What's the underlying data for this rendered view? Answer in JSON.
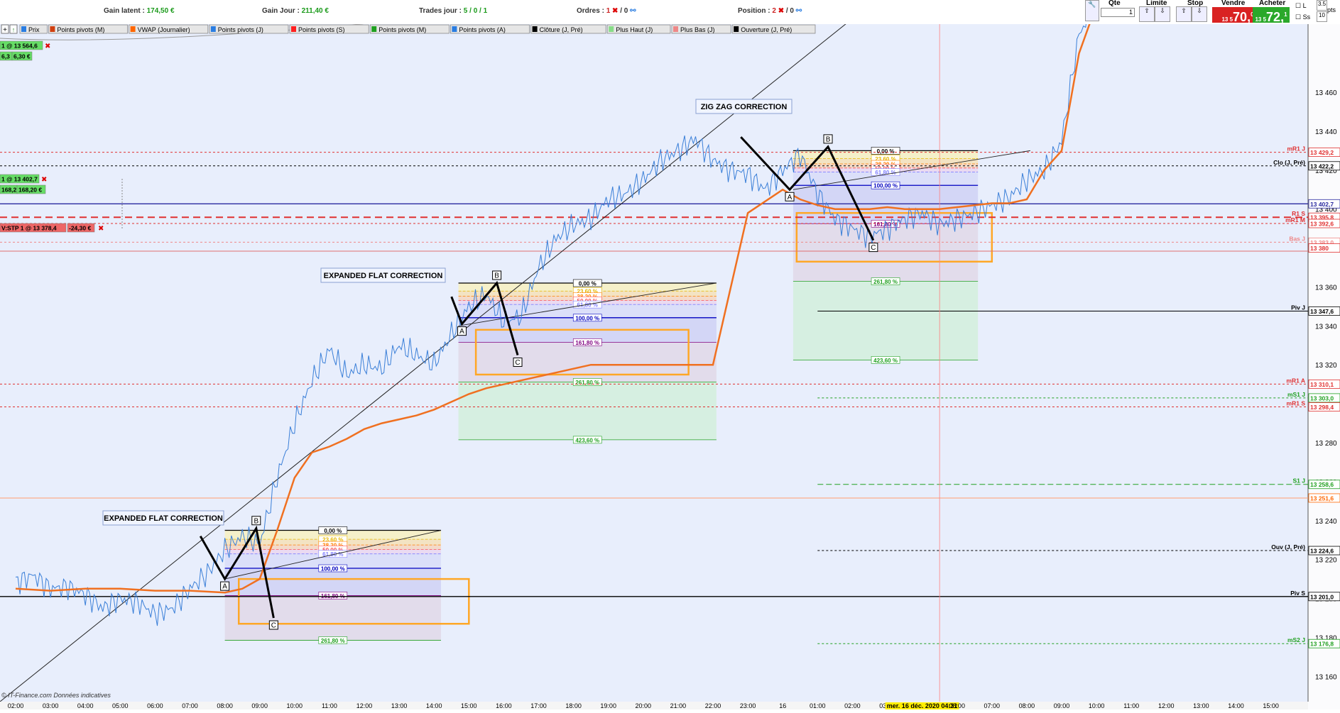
{
  "topbar": {
    "gain_latent_label": "Gain latent :",
    "gain_latent_value": "174,50 €",
    "gain_jour_label": "Gain Jour :",
    "gain_jour_value": "211,40 €",
    "trades_label": "Trades jour :",
    "trades_value": "5 / 0 / 1",
    "ordres_label": "Ordres :",
    "ordres_value": "1",
    "ordres_value2": "/ 0",
    "position_label": "Position :",
    "position_value": "2",
    "position_value2": "/ 0",
    "qte_label": "Qte",
    "qte_value": "1",
    "limite_label": "Limite",
    "stop_label": "Stop",
    "vendre_label": "Vendre",
    "vendre_price": "70,",
    "vendre_prefix": "13 5",
    "vendre_sup": "0",
    "acheter_label": "Acheter",
    "acheter_price": "72,",
    "acheter_prefix": "13 5",
    "acheter_sup": "1",
    "chk_l": "L",
    "chk_ss": "Ss",
    "pts_value": "3.5",
    "pts_value2": "10",
    "pts_label": "pts"
  },
  "indicator_tabs": [
    "Prix",
    "Points pivots (M)",
    "VWAP (Journalier)",
    "Points pivots (J)",
    "Points pivots (S)",
    "Points pivots (M)",
    "Points pivots (A)",
    "Clôture (J, Pré)",
    "Plus Haut (J)",
    "Plus Bas (J)",
    "Ouverture (J, Pré)"
  ],
  "tab_colors": [
    "#2a7de1",
    "#d04010",
    "#ff6600",
    "#2a7de1",
    "#ff2020",
    "#20a020",
    "#2a7de1",
    "#000000",
    "#88dd88",
    "#ee8888",
    "#000000"
  ],
  "orders": [
    {
      "text": "1 @ 13 564,6",
      "color": "#66dd66"
    },
    {
      "text": "6,3",
      "color": "#66dd66"
    },
    {
      "text": "6,30 €",
      "color": "#66dd66"
    },
    {
      "text": "1 @ 13 402,7",
      "color": "#66dd66"
    },
    {
      "text": "168,2",
      "color": "#66dd66"
    },
    {
      "text": "168,20 €",
      "color": "#66dd66"
    },
    {
      "text": "V:STP 1 @ 13 378,4",
      "color": "#ee6666"
    },
    {
      "text": "-24,30 €",
      "color": "#ee6666"
    }
  ],
  "annotations": [
    "EXPANDED FLAT CORRECTION",
    "EXPANDED FLAT CORRECTION",
    "ZIG ZAG CORRECTION"
  ],
  "wave_labels": [
    "A",
    "B",
    "C"
  ],
  "fib_labels": [
    "0,00 %",
    "23,60 %",
    "38,20 %",
    "50,00 %",
    "61,80 %",
    "100,00 %",
    "161,80 %",
    "261,80 %",
    "423,60 %"
  ],
  "price_axis_ticks": [
    "13 460",
    "13 440",
    "13 420",
    "13 400",
    "13 380",
    "13 360",
    "13 340",
    "13 320",
    "13 300",
    "13 280",
    "13 260",
    "13 240",
    "13 220",
    "13 200",
    "13 180",
    "13 160"
  ],
  "level_tags": [
    {
      "name": "mR1 J",
      "value": "13 429,2",
      "color": "#e03030"
    },
    {
      "name": "Clo (J, Pré)",
      "value": "13 422,2",
      "color": "#000000"
    },
    {
      "name": "",
      "value": "13 402,7",
      "color": "#2a2aa0"
    },
    {
      "name": "R1 S",
      "value": "13 395,8",
      "color": "#e03030"
    },
    {
      "name": "mR1 M",
      "value": "13 392,6",
      "color": "#e03030"
    },
    {
      "name": "Bas J",
      "value": "13 383,0",
      "color": "#ee8888"
    },
    {
      "name": "",
      "value": "13 380",
      "color": "#e03030"
    },
    {
      "name": "Piv J",
      "value": "13 347,6",
      "color": "#000000"
    },
    {
      "name": "mR1 A",
      "value": "13 310,1",
      "color": "#e03030"
    },
    {
      "name": "mS1 J",
      "value": "13 303,0",
      "color": "#20a020"
    },
    {
      "name": "mR1 S",
      "value": "13 298,4",
      "color": "#e03030"
    },
    {
      "name": "S1 J",
      "value": "13 258,6",
      "color": "#20a020"
    },
    {
      "name": "",
      "value": "13 251,6",
      "color": "#ff6600"
    },
    {
      "name": "Ouv (J, Pré)",
      "value": "13 224,6",
      "color": "#000000"
    },
    {
      "name": "Piv S",
      "value": "13 201,0",
      "color": "#000000"
    },
    {
      "name": "mS2 J",
      "value": "13 176,8",
      "color": "#20a020"
    }
  ],
  "time_axis": [
    "02:00",
    "03:00",
    "04:00",
    "05:00",
    "06:00",
    "07:00",
    "08:00",
    "09:00",
    "10:00",
    "11:00",
    "12:00",
    "13:00",
    "14:00",
    "15:00",
    "16:00",
    "17:00",
    "18:00",
    "19:00",
    "20:00",
    "21:00",
    "22:00",
    "23:00",
    "16",
    "01:00",
    "02:00",
    "03:00",
    "mer. 16 déc. 2020 04:31",
    "06:00",
    "07:00",
    "08:00",
    "09:00",
    "10:00",
    "11:00",
    "12:00",
    "13:00",
    "14:00",
    "15:00"
  ],
  "footer": "© IT-Finance.com  Données indicatives",
  "chart_data": {
    "type": "line",
    "title": "",
    "xlabel": "",
    "ylabel": "",
    "ylim": [
      13147,
      13495
    ],
    "x_unit": "hours from 02:00 on 15 Dec 2020",
    "series": [
      {
        "x": [
          0,
          0.5,
          1,
          1.5,
          2,
          2.5,
          3,
          3.5,
          4,
          4.5,
          5,
          5.5,
          6,
          6.5,
          7,
          7.5,
          8,
          8.5,
          9,
          9.5,
          10,
          10.5,
          11,
          11.5,
          12,
          12.5,
          13,
          13.5,
          14,
          14.5,
          15,
          15.5,
          16,
          16.5,
          17,
          17.5,
          18,
          18.5,
          19,
          19.5,
          20,
          20.5,
          21,
          21.5,
          22,
          22.5,
          23,
          23.5,
          24,
          24.5,
          25,
          25.5,
          26,
          26.5,
          27,
          27.5,
          28,
          28.5,
          29,
          29.5,
          30,
          30.5,
          31
        ],
        "values": [
          13208,
          13212,
          13205,
          13206,
          13202,
          13195,
          13200,
          13198,
          13192,
          13195,
          13205,
          13213,
          13225,
          13232,
          13228,
          13262,
          13290,
          13312,
          13328,
          13315,
          13320,
          13318,
          13330,
          13325,
          13320,
          13336,
          13350,
          13356,
          13342,
          13345,
          13370,
          13385,
          13392,
          13395,
          13405,
          13408,
          13415,
          13425,
          13430,
          13436,
          13425,
          13420,
          13418,
          13410,
          13420,
          13428,
          13408,
          13395,
          13390,
          13386,
          13390,
          13395,
          13398,
          13392,
          13395,
          13398,
          13402,
          13406,
          13415,
          13420,
          13435,
          13490,
          13505
        ]
      },
      {
        "x": [
          0,
          1,
          2,
          3,
          4,
          5,
          6,
          6.5,
          7,
          7.5,
          8,
          8.5,
          9,
          9.5,
          10,
          10.5,
          11,
          11.5,
          12,
          12.5,
          13,
          13.5,
          14,
          14.5,
          15,
          15.5,
          16,
          16.5,
          17,
          17.5,
          18,
          18.5,
          19,
          20,
          21,
          22,
          22.5,
          23,
          23.5,
          24,
          24.5,
          25,
          25.5,
          26,
          26.5,
          27,
          27.5,
          28,
          28.5,
          29,
          29.5,
          30,
          30.5,
          31
        ],
        "values": [
          13205,
          13204,
          13205,
          13205,
          13204,
          13204,
          13203,
          13205,
          13210,
          13235,
          13262,
          13275,
          13278,
          13282,
          13287,
          13290,
          13292,
          13294,
          13297,
          13301,
          13305,
          13308,
          13310,
          13312,
          13314,
          13316,
          13318,
          13320,
          13320,
          13320,
          13320,
          13320,
          13320,
          13320,
          13398,
          13410,
          13405,
          13402,
          13400,
          13400,
          13400,
          13401,
          13400,
          13400,
          13400,
          13401,
          13402,
          13403,
          13403,
          13405,
          13420,
          13430,
          13480,
          13505
        ]
      }
    ]
  }
}
